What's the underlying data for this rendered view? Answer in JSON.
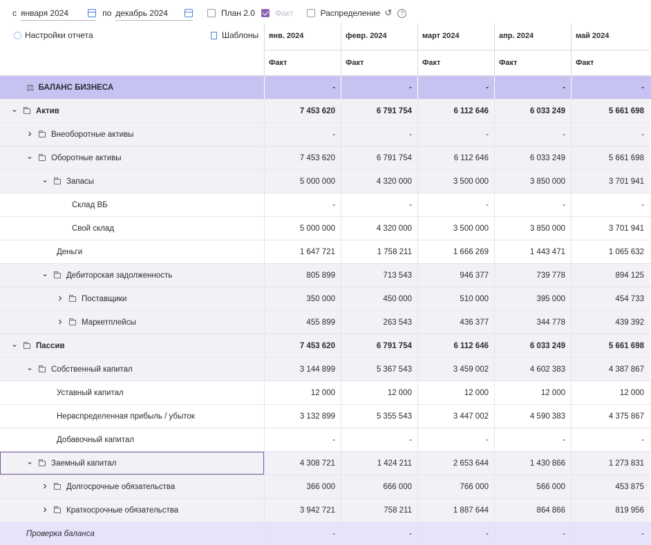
{
  "toolbar": {
    "from_label": "с",
    "from_value": "января 2024",
    "to_label": "по",
    "to_value": "декабрь 2024",
    "plan_label": "План 2.0",
    "fact_label": "Факт",
    "distribution_label": "Распределение",
    "help_glyph": "?"
  },
  "header": {
    "settings_label": "Настройки отчета",
    "templates_label": "Шаблоны",
    "months": [
      {
        "name": "янв. 2024",
        "sub": "Факт"
      },
      {
        "name": "февр. 2024",
        "sub": "Факт"
      },
      {
        "name": "март 2024",
        "sub": "Факт"
      },
      {
        "name": "апр. 2024",
        "sub": "Факт"
      },
      {
        "name": "май 2024",
        "sub": "Факт"
      }
    ]
  },
  "rows": [
    {
      "label": "БАЛАНС БИЗНЕСА",
      "values": [
        "-",
        "-",
        "-",
        "-",
        "-"
      ]
    },
    {
      "label": "Актив",
      "values": [
        "7 453 620",
        "6 791 754",
        "6 112 646",
        "6 033 249",
        "5 661 698"
      ]
    },
    {
      "label": "Внеоборотные активы",
      "values": [
        "-",
        "-",
        "-",
        "-",
        "-"
      ]
    },
    {
      "label": "Оборотные активы",
      "values": [
        "7 453 620",
        "6 791 754",
        "6 112 646",
        "6 033 249",
        "5 661 698"
      ]
    },
    {
      "label": "Запасы",
      "values": [
        "5 000 000",
        "4 320 000",
        "3 500 000",
        "3 850 000",
        "3 701 941"
      ]
    },
    {
      "label": "Склад ВБ",
      "values": [
        "-",
        "-",
        "-",
        "-",
        "-"
      ]
    },
    {
      "label": "Свой склад",
      "values": [
        "5 000 000",
        "4 320 000",
        "3 500 000",
        "3 850 000",
        "3 701 941"
      ]
    },
    {
      "label": "Деньги",
      "values": [
        "1 647 721",
        "1 758 211",
        "1 666 269",
        "1 443 471",
        "1 065 632"
      ]
    },
    {
      "label": "Дебиторская задолженность",
      "values": [
        "805 899",
        "713 543",
        "946 377",
        "739 778",
        "894 125"
      ]
    },
    {
      "label": "Поставщики",
      "values": [
        "350 000",
        "450 000",
        "510 000",
        "395 000",
        "454 733"
      ]
    },
    {
      "label": "Маркетплейсы",
      "values": [
        "455 899",
        "263 543",
        "436 377",
        "344 778",
        "439 392"
      ]
    },
    {
      "label": "Пассив",
      "values": [
        "7 453 620",
        "6 791 754",
        "6 112 646",
        "6 033 249",
        "5 661 698"
      ]
    },
    {
      "label": "Собственный капитал",
      "values": [
        "3 144 899",
        "5 367 543",
        "3 459 002",
        "4 602 383",
        "4 387 867"
      ]
    },
    {
      "label": "Уставный капитал",
      "values": [
        "12 000",
        "12 000",
        "12 000",
        "12 000",
        "12 000"
      ]
    },
    {
      "label": "Нераспределенная прибыль / убыток",
      "values": [
        "3 132 899",
        "5 355 543",
        "3 447 002",
        "4 590 383",
        "4 375 867"
      ]
    },
    {
      "label": "Добавочный капитал",
      "values": [
        "-",
        "-",
        "-",
        "-",
        "-"
      ]
    },
    {
      "label": "Заемный капитал",
      "values": [
        "4 308 721",
        "1 424 211",
        "2 653 644",
        "1 430 866",
        "1 273 831"
      ]
    },
    {
      "label": "Долгосрочные обязательства",
      "values": [
        "366 000",
        "666 000",
        "766 000",
        "566 000",
        "453 875"
      ]
    },
    {
      "label": "Краткосрочные обязательства",
      "values": [
        "3 942 721",
        "758 211",
        "1 887 644",
        "864 866",
        "819 956"
      ]
    },
    {
      "label": "Проверка баланса",
      "values": [
        "-",
        "-",
        "-",
        "-",
        "-"
      ]
    }
  ]
}
